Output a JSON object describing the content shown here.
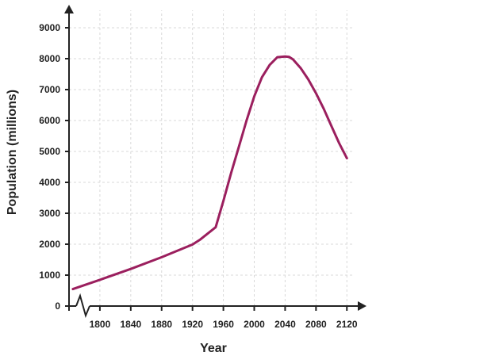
{
  "chart_data": {
    "type": "line",
    "title": "",
    "xlabel": "Year",
    "ylabel": "Population (millions)",
    "xlim": [
      1760,
      2130
    ],
    "ylim": [
      0,
      9000
    ],
    "x_ticks": [
      1800,
      1840,
      1880,
      1920,
      1960,
      2000,
      2040,
      2080,
      2120
    ],
    "y_ticks": [
      0,
      1000,
      2000,
      3000,
      4000,
      5000,
      6000,
      7000,
      8000,
      9000
    ],
    "grid": true,
    "axis_break": "x",
    "series": [
      {
        "color": "#9b1f5e",
        "x": [
          1765,
          1800,
          1840,
          1880,
          1920,
          1930,
          1950,
          1960,
          1970,
          1980,
          1990,
          2000,
          2010,
          2020,
          2030,
          2040,
          2045,
          2050,
          2060,
          2070,
          2080,
          2090,
          2100,
          2110,
          2120
        ],
        "y": [
          550,
          850,
          1200,
          1580,
          1990,
          2150,
          2550,
          3400,
          4300,
          5150,
          6000,
          6780,
          7400,
          7800,
          8050,
          8070,
          8060,
          7980,
          7700,
          7330,
          6880,
          6380,
          5820,
          5270,
          4780
        ]
      }
    ]
  }
}
